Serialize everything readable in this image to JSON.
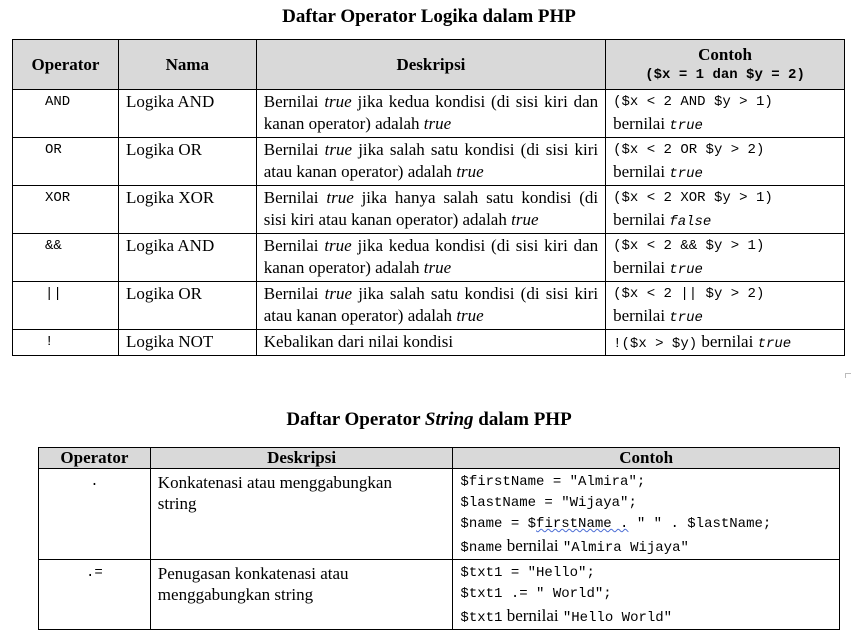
{
  "table1": {
    "title": "Daftar Operator Logika dalam PHP",
    "headers": {
      "operator": "Operator",
      "nama": "Nama",
      "deskripsi": "Deskripsi",
      "contoh": "Contoh",
      "contoh_sub": "($x = 1 dan $y = 2)"
    },
    "rows": [
      {
        "op": "AND",
        "nama": "Logika AND",
        "desc": [
          "Bernilai ",
          "true",
          " jika kedua kondisi (di sisi kiri dan kanan operator) adalah ",
          "true"
        ],
        "ex_code": "($x < 2 AND $y > 1)",
        "ex_text": "bernilai ",
        "ex_val": "true"
      },
      {
        "op": "OR",
        "nama": "Logika OR",
        "desc": [
          "Bernilai ",
          "true",
          " jika salah satu kondisi (di sisi kiri atau kanan operator) adalah ",
          "true"
        ],
        "ex_code": "($x < 2 OR $y > 2)",
        "ex_text": "bernilai ",
        "ex_val": "true"
      },
      {
        "op": "XOR",
        "nama": "Logika XOR",
        "desc": [
          "Bernilai ",
          "true",
          " jika hanya salah satu kondisi (di sisi kiri atau kanan operator) adalah ",
          "true"
        ],
        "ex_code": "($x < 2 XOR $y > 1)",
        "ex_text": "bernilai ",
        "ex_val": "false"
      },
      {
        "op": "&&",
        "nama": "Logika AND",
        "desc": [
          "Bernilai ",
          "true",
          " jika kedua kondisi (di sisi kiri dan kanan operator) adalah ",
          "true"
        ],
        "ex_code": "($x < 2 && $y > 1)",
        "ex_text": "bernilai ",
        "ex_val": "true"
      },
      {
        "op": "||",
        "nama": "Logika OR",
        "desc": [
          "Bernilai ",
          "true",
          " jika salah satu kondisi (di sisi kiri atau kanan operator) adalah ",
          "true"
        ],
        "ex_code": "($x < 2 || $y > 2)",
        "ex_text": "bernilai ",
        "ex_val": "true"
      },
      {
        "op": "!",
        "nama": "Logika NOT",
        "desc": [
          "Kebalikan dari nilai kondisi",
          "",
          "",
          ""
        ],
        "ex_code": "!($x > $y)",
        "ex_text": " bernilai ",
        "ex_val": "true"
      }
    ]
  },
  "table2": {
    "title_pre": "Daftar Operator ",
    "title_em": "String",
    "title_post": " dalam PHP",
    "headers": {
      "operator": "Operator",
      "deskripsi": "Deskripsi",
      "contoh": "Contoh"
    },
    "row1": {
      "op": ".",
      "desc1": "Konkatenasi atau menggabungkan",
      "desc2": "string",
      "l1": "$firstName = \"Almira\";",
      "l2": "$lastName = \"Wijaya\";",
      "l3a": "$name = $",
      "l3b": "firstName .",
      "l3c": " \" \" . $lastName;",
      "l4a": "$name",
      "l4b": " bernilai ",
      "l4c": "\"Almira Wijaya\""
    },
    "row2": {
      "op": ".=",
      "desc1": "Penugasan konkatenasi atau",
      "desc2": "menggabungkan string",
      "l1": "$txt1 = \"Hello\";",
      "l2": "$txt1 .= \" World\";",
      "l3a": "$txt1",
      "l3b": " bernilai ",
      "l3c": "\"Hello World\""
    }
  }
}
